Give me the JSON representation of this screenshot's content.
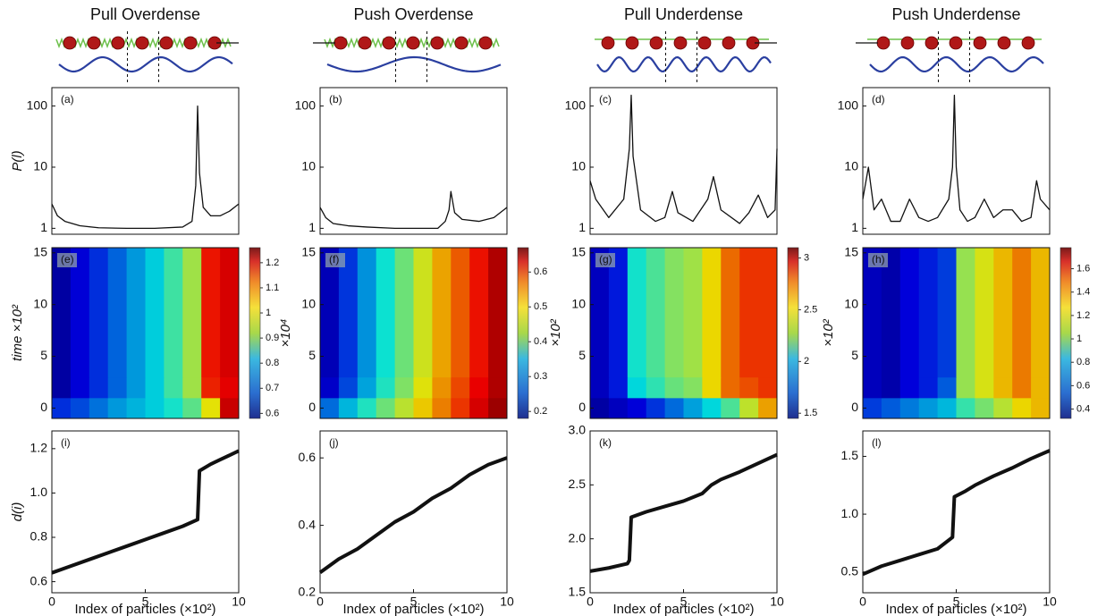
{
  "chart_data": [
    {
      "type": "line",
      "title": "Pull Overdense",
      "panel": "(a)",
      "ylabel": "P(l)",
      "log": true,
      "color": "#111111",
      "x": [
        0,
        0.3,
        0.7,
        1.5,
        2.5,
        4,
        5.5,
        7,
        7.5,
        7.7,
        7.8,
        7.9,
        8.1,
        8.5,
        9,
        9.5,
        10
      ],
      "values": [
        2.5,
        1.6,
        1.3,
        1.1,
        1.02,
        1,
        1,
        1.05,
        1.3,
        5,
        100,
        8,
        2.2,
        1.6,
        1.6,
        1.9,
        2.5
      ],
      "xlim": [
        0,
        10
      ],
      "ylim": [
        0.8,
        200
      ],
      "yticks": [
        1,
        10,
        100
      ]
    },
    {
      "type": "heatmap",
      "panel": "(e)",
      "ylabel": "time ×10²",
      "xbins": [
        0,
        1,
        2,
        3,
        4,
        5,
        6,
        7,
        8,
        9,
        10
      ],
      "ybins": [
        -1,
        1,
        3,
        15.5
      ],
      "values": [
        [
          0.7,
          0.72,
          0.75,
          0.78,
          0.8,
          0.82,
          0.85,
          0.9,
          1.0,
          1.2
        ],
        [
          0.62,
          0.66,
          0.7,
          0.74,
          0.78,
          0.82,
          0.88,
          0.95,
          1.15,
          1.18
        ],
        [
          0.62,
          0.66,
          0.7,
          0.74,
          0.78,
          0.82,
          0.88,
          0.95,
          1.16,
          1.19
        ]
      ],
      "xlim": [
        0,
        10
      ],
      "ylim": [
        -1,
        15.5
      ],
      "yticks": [
        0,
        5,
        10,
        15
      ],
      "zlim": [
        0.58,
        1.26
      ],
      "zticks": [
        0.6,
        0.7,
        0.8,
        0.9,
        1,
        1.1,
        1.2
      ]
    },
    {
      "type": "line",
      "panel": "(i)",
      "ylabel": "d(i)",
      "xlabel": "Index of particles (×10²)",
      "color": "#111111",
      "x": [
        0,
        1,
        2,
        3,
        4,
        5,
        6,
        7,
        7.8,
        7.9,
        8.5,
        9,
        9.5,
        10
      ],
      "values": [
        0.64,
        0.67,
        0.7,
        0.73,
        0.76,
        0.79,
        0.82,
        0.85,
        0.88,
        1.1,
        1.13,
        1.15,
        1.17,
        1.19
      ],
      "xlim": [
        0,
        10
      ],
      "xticks": [
        0,
        5,
        10
      ],
      "ylim": [
        0.55,
        1.28
      ],
      "yticks": [
        0.6,
        0.8,
        {
          "value": 1,
          "label": "1.0"
        },
        1.2
      ]
    },
    {
      "type": "line",
      "title": "Push Overdense",
      "panel": "(b)",
      "log": true,
      "color": "#111111",
      "x": [
        0,
        0.3,
        0.7,
        1.5,
        2.5,
        4,
        5.5,
        6.3,
        6.7,
        6.9,
        7.0,
        7.2,
        7.6,
        8.5,
        9.3,
        10
      ],
      "values": [
        2.2,
        1.5,
        1.2,
        1.1,
        1.05,
        1,
        1,
        1,
        1.3,
        2,
        4,
        1.8,
        1.4,
        1.3,
        1.5,
        2.2
      ],
      "xlim": [
        0,
        10
      ],
      "ylim": [
        0.8,
        200
      ],
      "yticks": [
        1,
        10,
        100
      ]
    },
    {
      "type": "heatmap",
      "panel": "(f)",
      "ylabel": "×10⁴",
      "xbins": [
        0,
        1,
        2,
        3,
        4,
        5,
        6,
        7,
        8,
        9,
        10
      ],
      "ybins": [
        -1,
        1,
        3,
        15.5
      ],
      "values": [
        [
          0.3,
          0.34,
          0.38,
          0.42,
          0.46,
          0.5,
          0.54,
          0.58,
          0.62,
          0.65
        ],
        [
          0.23,
          0.28,
          0.33,
          0.38,
          0.43,
          0.48,
          0.53,
          0.57,
          0.61,
          0.64
        ],
        [
          0.22,
          0.27,
          0.32,
          0.37,
          0.42,
          0.47,
          0.52,
          0.56,
          0.6,
          0.64
        ]
      ],
      "xlim": [
        0,
        10
      ],
      "ylim": [
        -1,
        15.5
      ],
      "yticks": [
        0,
        5,
        10,
        15
      ],
      "zlim": [
        0.18,
        0.67
      ],
      "zticks": [
        0.2,
        0.3,
        0.4,
        0.5,
        0.6
      ]
    },
    {
      "type": "line",
      "panel": "(j)",
      "xlabel": "Index of particles (×10²)",
      "color": "#111111",
      "x": [
        0,
        1,
        2,
        3,
        4,
        5,
        6,
        7,
        8,
        9,
        10
      ],
      "values": [
        0.26,
        0.3,
        0.33,
        0.37,
        0.41,
        0.44,
        0.48,
        0.51,
        0.55,
        0.58,
        0.6
      ],
      "xlim": [
        0,
        10
      ],
      "xticks": [
        0,
        5,
        10
      ],
      "ylim": [
        0.2,
        0.68
      ],
      "yticks": [
        0.2,
        0.4,
        0.6
      ]
    },
    {
      "type": "line",
      "title": "Pull Underdense",
      "panel": "(c)",
      "log": true,
      "color": "#111111",
      "x": [
        0,
        0.3,
        1,
        1.8,
        2.1,
        2.2,
        2.3,
        2.7,
        3.5,
        4,
        4.4,
        4.7,
        5.5,
        6.3,
        6.6,
        7,
        8,
        8.5,
        9,
        9.5,
        9.9,
        10
      ],
      "values": [
        6,
        3,
        1.5,
        3,
        20,
        150,
        15,
        2,
        1.3,
        1.5,
        4,
        1.8,
        1.3,
        3,
        7,
        2,
        1.2,
        1.8,
        3.5,
        1.5,
        2,
        20
      ],
      "xlim": [
        0,
        10
      ],
      "ylim": [
        0.8,
        200
      ],
      "yticks": [
        1,
        10,
        100
      ]
    },
    {
      "type": "heatmap",
      "panel": "(g)",
      "ylabel": "×10²",
      "xbins": [
        0,
        1,
        2,
        3,
        4,
        5,
        6,
        7,
        8,
        9,
        10
      ],
      "ybins": [
        -1,
        1,
        3,
        15.5
      ],
      "values": [
        [
          1.55,
          1.6,
          1.65,
          1.75,
          1.85,
          1.95,
          2.05,
          2.2,
          2.4,
          2.6
        ],
        [
          1.6,
          1.7,
          2.05,
          2.15,
          2.25,
          2.3,
          2.5,
          2.7,
          2.75,
          2.8
        ],
        [
          1.6,
          1.7,
          2.1,
          2.2,
          2.3,
          2.35,
          2.5,
          2.7,
          2.8,
          2.8
        ]
      ],
      "xlim": [
        0,
        10
      ],
      "ylim": [
        -1,
        15.5
      ],
      "yticks": [
        0,
        5,
        10,
        15
      ],
      "zlim": [
        1.45,
        3.1
      ],
      "zticks": [
        1.5,
        2,
        2.5,
        3
      ]
    },
    {
      "type": "line",
      "panel": "(k)",
      "xlabel": "Index of particles (×10²)",
      "color": "#111111",
      "x": [
        0,
        1,
        2,
        2.1,
        2.2,
        3,
        4,
        5,
        6,
        6.5,
        7,
        8,
        9,
        10
      ],
      "values": [
        1.7,
        1.73,
        1.77,
        1.8,
        2.2,
        2.25,
        2.3,
        2.35,
        2.42,
        2.5,
        2.55,
        2.62,
        2.7,
        2.78
      ],
      "xlim": [
        0,
        10
      ],
      "xticks": [
        0,
        5,
        10
      ],
      "ylim": [
        1.5,
        3.0
      ],
      "yticks": [
        1.5,
        {
          "value": 2,
          "label": "2.0"
        },
        2.5,
        {
          "value": 3,
          "label": "3.0"
        }
      ]
    },
    {
      "type": "line",
      "title": "Push Underdense",
      "panel": "(d)",
      "log": true,
      "color": "#111111",
      "x": [
        0,
        0.3,
        0.6,
        1,
        1.5,
        2,
        2.5,
        3,
        3.5,
        4,
        4.6,
        4.8,
        4.9,
        5.0,
        5.2,
        5.6,
        6,
        6.5,
        7,
        7.5,
        8,
        8.5,
        9,
        9.3,
        9.5,
        10
      ],
      "values": [
        3,
        10,
        2,
        3,
        1.3,
        1.3,
        3,
        1.5,
        1.3,
        1.5,
        3,
        10,
        150,
        10,
        2,
        1.3,
        1.5,
        3,
        1.5,
        2,
        2,
        1.3,
        1.5,
        6,
        3,
        2
      ],
      "xlim": [
        0,
        10
      ],
      "ylim": [
        0.8,
        200
      ],
      "yticks": [
        1,
        10,
        100
      ]
    },
    {
      "type": "heatmap",
      "panel": "(h)",
      "ylabel": "×10²",
      "xbins": [
        0,
        1,
        2,
        3,
        4,
        5,
        6,
        7,
        8,
        9,
        10
      ],
      "ybins": [
        -1,
        1,
        3,
        15.5
      ],
      "values": [
        [
          0.6,
          0.65,
          0.7,
          0.75,
          0.8,
          0.95,
          1.05,
          1.15,
          1.25,
          1.3
        ],
        [
          0.45,
          0.42,
          0.5,
          0.55,
          0.65,
          1.1,
          1.2,
          1.3,
          1.4,
          1.3
        ],
        [
          0.45,
          0.42,
          0.5,
          0.55,
          0.6,
          1.1,
          1.2,
          1.3,
          1.4,
          1.3
        ]
      ],
      "xlim": [
        0,
        10
      ],
      "ylim": [
        -1,
        15.5
      ],
      "yticks": [
        0,
        5,
        10,
        15
      ],
      "zlim": [
        0.32,
        1.78
      ],
      "zticks": [
        0.4,
        0.6,
        0.8,
        1,
        1.2,
        1.4,
        1.6
      ]
    },
    {
      "type": "line",
      "panel": "(l)",
      "xlabel": "Index of particles (×10²)",
      "color": "#111111",
      "x": [
        0,
        1,
        2,
        3,
        4,
        4.8,
        4.9,
        5.5,
        6,
        7,
        8,
        9,
        10
      ],
      "values": [
        0.48,
        0.55,
        0.6,
        0.65,
        0.7,
        0.8,
        1.15,
        1.2,
        1.25,
        1.33,
        1.4,
        1.48,
        1.55
      ],
      "xlim": [
        0,
        10
      ],
      "xticks": [
        0,
        5,
        10
      ],
      "ylim": [
        0.32,
        1.72
      ],
      "yticks": [
        0.5,
        {
          "value": 1,
          "label": "1.0"
        },
        1.5
      ]
    }
  ]
}
